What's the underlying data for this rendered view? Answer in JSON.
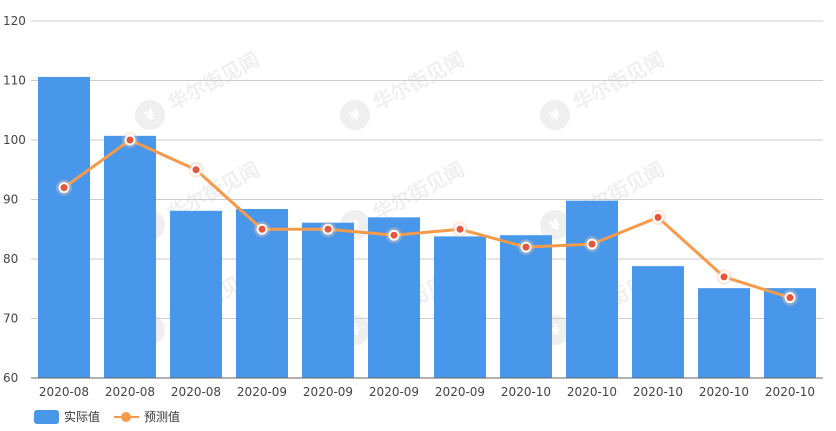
{
  "chart_data": {
    "type": "bar",
    "categories": [
      "2020-08",
      "2020-08",
      "2020-08",
      "2020-09",
      "2020-09",
      "2020-09",
      "2020-09",
      "2020-10",
      "2020-10",
      "2020-10",
      "2020-10",
      "2020-10"
    ],
    "series": [
      {
        "name": "实际值",
        "type": "bar",
        "color": "#4897ea",
        "values": [
          110.6,
          100.7,
          88.1,
          88.4,
          86.1,
          87.0,
          83.8,
          84.0,
          89.8,
          78.8,
          75.1,
          75.1
        ]
      },
      {
        "name": "预测值",
        "type": "line",
        "color": "#f59a4b",
        "values": [
          92.0,
          100.0,
          95.0,
          85.0,
          85.0,
          84.0,
          85.0,
          82.0,
          82.5,
          87.0,
          77.0,
          73.5
        ]
      }
    ],
    "ylim": [
      60,
      120
    ],
    "yticks": [
      60,
      70,
      80,
      90,
      100,
      110,
      120
    ],
    "grid": true,
    "legend": "bottom-left",
    "watermark": "华尔街见闻"
  }
}
